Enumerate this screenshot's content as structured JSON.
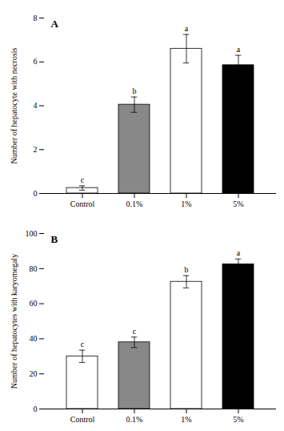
{
  "chart_data": [
    {
      "type": "bar",
      "title": "A",
      "categories": [
        "Control",
        "0.1%",
        "1%",
        "5%"
      ],
      "values": [
        0.25,
        4.05,
        6.6,
        5.85
      ],
      "errors": [
        0.1,
        0.35,
        0.65,
        0.45
      ],
      "annotations": [
        "c",
        "b",
        "a",
        "a"
      ],
      "colors": [
        "white",
        "#888888",
        "white",
        "black"
      ],
      "ylabel": "Number of hepatocyte with necrosis",
      "ylim": [
        0,
        8
      ],
      "yticks": [
        0,
        2,
        4,
        6,
        8
      ]
    },
    {
      "type": "bar",
      "title": "B",
      "categories": [
        "Control",
        "0.1%",
        "1%",
        "5%"
      ],
      "values": [
        30.0,
        38.0,
        72.5,
        82.5
      ],
      "errors": [
        3.5,
        3.0,
        3.5,
        3.0
      ],
      "annotations": [
        "c",
        "c",
        "b",
        "a"
      ],
      "colors": [
        "white",
        "#888888",
        "white",
        "black"
      ],
      "ylabel": "Number of hepatocytes with karyomegaly",
      "ylim": [
        0,
        100
      ],
      "yticks": [
        0,
        20,
        40,
        60,
        80,
        100
      ]
    }
  ]
}
